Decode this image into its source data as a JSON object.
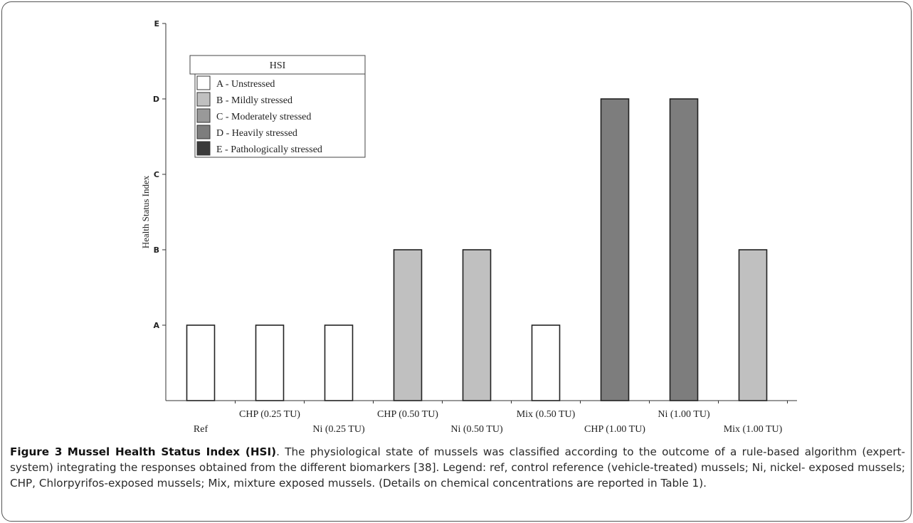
{
  "figure": {
    "label": "Figure 3",
    "title": "Mussel Health Status Index (HSI)",
    "caption_body": ". The physiological state of mussels was classified according to the outcome of a rule-based algorithm (expert-system) integrating the responses obtained from the different biomarkers [38]. Legend: ref, control reference (vehicle-treated) mussels; Ni, nickel- exposed mussels; CHP, Chlorpyrifos-exposed mussels; Mix, mixture exposed mussels. (Details on chemical concentrations are reported in Table 1)."
  },
  "chart_data": {
    "type": "bar",
    "title": "",
    "xlabel": "",
    "ylabel": "Health Status Index",
    "y_ticks": [
      "A",
      "B",
      "C",
      "D",
      "E"
    ],
    "ylim": [
      0,
      5
    ],
    "categories": [
      "Ref",
      "CHP (0.25 TU)",
      "Ni (0.25 TU)",
      "CHP (0.50 TU)",
      "Ni (0.50 TU)",
      "Mix (0.50 TU)",
      "CHP (1.00 TU)",
      "Ni (1.00 TU)",
      "Mix (1.00 TU)"
    ],
    "values": [
      "A",
      "A",
      "A",
      "B",
      "B",
      "A",
      "D",
      "D",
      "B"
    ],
    "category_label_rows": [
      "lower",
      "upper",
      "lower",
      "upper",
      "lower",
      "upper",
      "lower",
      "upper",
      "lower"
    ],
    "legend": {
      "title": "HSI",
      "placement": "top-left",
      "entries": [
        {
          "label": "A - Unstressed",
          "color": "#ffffff"
        },
        {
          "label": "B - Mildly stressed",
          "color": "#c0c0c0"
        },
        {
          "label": "C - Moderately stressed",
          "color": "#999999"
        },
        {
          "label": "D - Heavily stressed",
          "color": "#7d7d7d"
        },
        {
          "label": "E - Pathologically stressed",
          "color": "#3a3a3a"
        }
      ]
    },
    "grid": false
  }
}
